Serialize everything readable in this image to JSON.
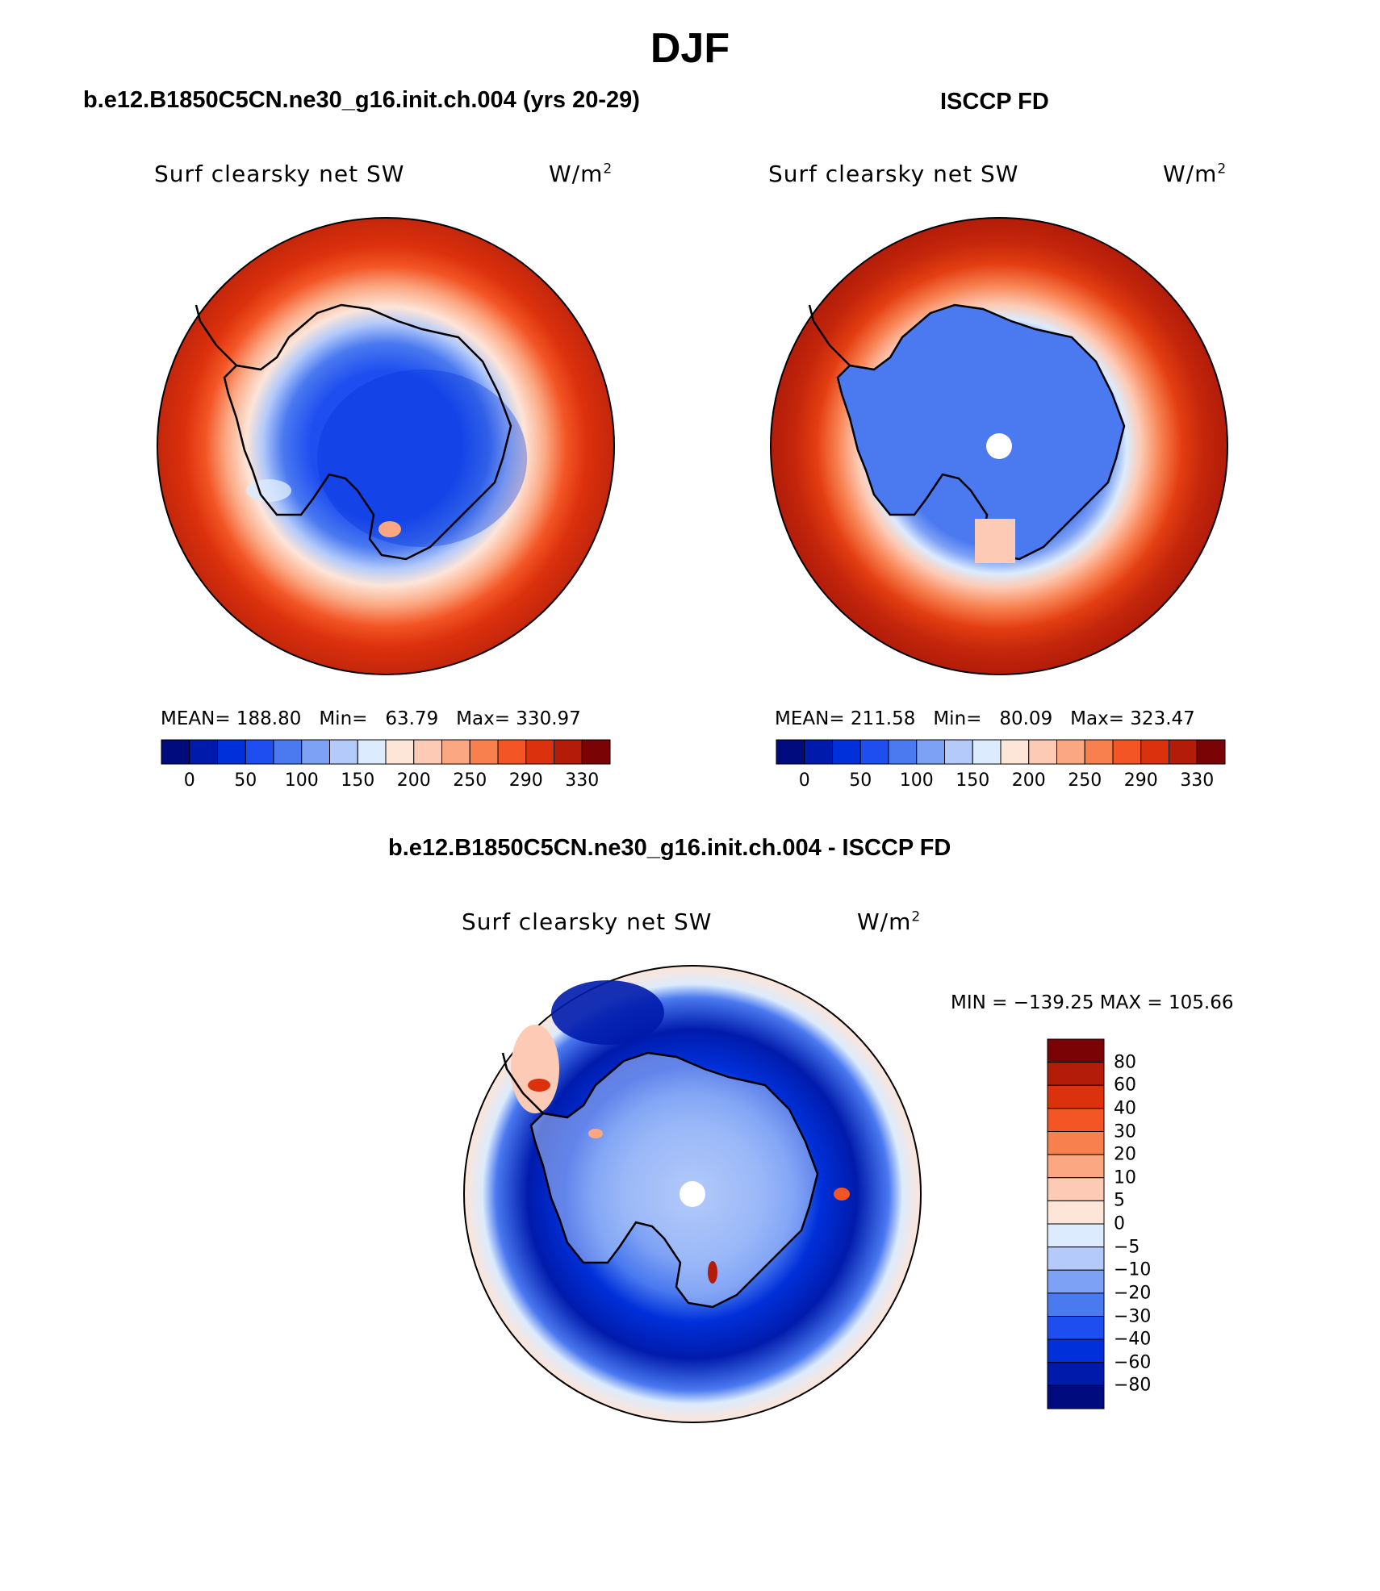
{
  "figure": {
    "title": "DJF",
    "variable_label": "Surf clearsky net SW",
    "units_label": "W/m",
    "units_superscript": "2"
  },
  "panels": [
    {
      "title": "b.e12.B1850C5CN.ne30_g16.init.ch.004 (yrs 20-29)",
      "mean_label": "MEAN=",
      "mean_value": "188.80",
      "min_label": "Min=",
      "min_value": "63.79",
      "max_label": "Max=",
      "max_value": "330.97"
    },
    {
      "title": "ISCCP FD",
      "mean_label": "MEAN=",
      "mean_value": "211.58",
      "min_label": "Min=",
      "min_value": "80.09",
      "max_label": "Max=",
      "max_value": "323.47"
    },
    {
      "title": "b.e12.B1850C5CN.ne30_g16.init.ch.004 - ISCCP FD",
      "minmax_text": "MIN = −139.25 MAX = 105.66"
    }
  ],
  "colorbar_abs": {
    "colors": [
      "#000c7d",
      "#001bac",
      "#0030d9",
      "#1f4ef0",
      "#4a79f0",
      "#7da1f5",
      "#b3cafa",
      "#dcebfd",
      "#fde5d8",
      "#fdcbb5",
      "#fba882",
      "#f8804f",
      "#f35525",
      "#dc310d",
      "#b21c09",
      "#7a0306"
    ],
    "tick_labels": [
      "0",
      "50",
      "100",
      "150",
      "200",
      "250",
      "290",
      "330"
    ]
  },
  "colorbar_diff": {
    "colors": [
      "#7a0306",
      "#b21c09",
      "#dc310d",
      "#f35525",
      "#f8804f",
      "#fba882",
      "#fdcbb5",
      "#fde5d8",
      "#dcebfd",
      "#b3cafa",
      "#7da1f5",
      "#4a79f0",
      "#1f4ef0",
      "#0030d9",
      "#001bac",
      "#000c7d"
    ],
    "tick_labels": [
      "80",
      "60",
      "40",
      "30",
      "20",
      "10",
      "5",
      "0",
      "−5",
      "−10",
      "−20",
      "−30",
      "−40",
      "−60",
      "−80"
    ]
  }
}
